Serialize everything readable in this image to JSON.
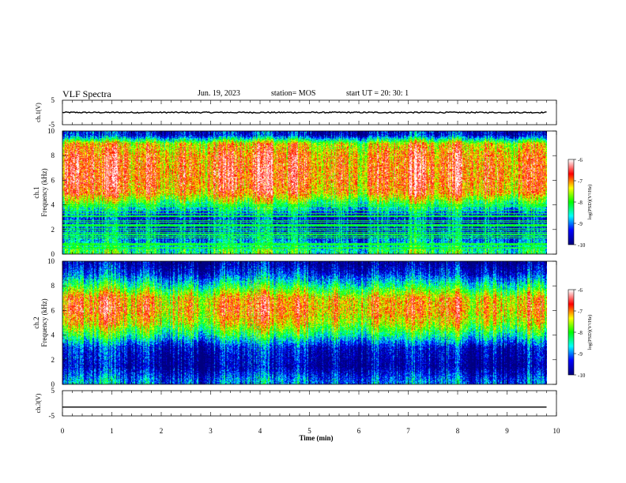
{
  "header": {
    "title": "VLF Spectra",
    "date": "Jun. 19, 2023",
    "station": "station= MOS",
    "start": "start  UT =   20: 30: 1"
  },
  "chart_data": [
    {
      "type": "line",
      "name": "ch1-waveform",
      "ylabel": "ch.1(V)",
      "ylim": [
        -5,
        5
      ],
      "xlim": [
        0,
        10
      ],
      "x": [
        0,
        9.8
      ],
      "values": [
        0,
        0
      ],
      "y_ticks": [
        5,
        -5
      ],
      "note_series": "near-constant trace around 0 V"
    },
    {
      "type": "heatmap",
      "name": "ch1-spectrogram",
      "ylabel": "ch.1\nFrequency (kHz)",
      "ylim": [
        0,
        10
      ],
      "xlim": [
        0,
        10
      ],
      "x_extent": [
        0,
        9.8
      ],
      "y_ticks": [
        0,
        2,
        4,
        6,
        8,
        10
      ],
      "colorbar": {
        "label": "log(PSD)(V²/Hz)",
        "range": [
          -10,
          -6
        ],
        "ticks": [
          -6,
          -7,
          -8,
          -9,
          -10
        ]
      },
      "intensity_profile": [
        {
          "freq_khz": 0.3,
          "log_psd": -8.2
        },
        {
          "freq_khz": 1.0,
          "log_psd": -8.8
        },
        {
          "freq_khz": 2.0,
          "log_psd": -9.2
        },
        {
          "freq_khz": 3.0,
          "log_psd": -9.4
        },
        {
          "freq_khz": 4.0,
          "log_psd": -8.2
        },
        {
          "freq_khz": 5.0,
          "log_psd": -7.0
        },
        {
          "freq_khz": 6.0,
          "log_psd": -6.8
        },
        {
          "freq_khz": 7.0,
          "log_psd": -6.8
        },
        {
          "freq_khz": 8.0,
          "log_psd": -6.9
        },
        {
          "freq_khz": 9.0,
          "log_psd": -7.3
        },
        {
          "freq_khz": 9.7,
          "log_psd": -9.5
        }
      ]
    },
    {
      "type": "heatmap",
      "name": "ch2-spectrogram",
      "ylabel": "ch.2\nFrequency (kHz)",
      "ylim": [
        0,
        10
      ],
      "xlim": [
        0,
        10
      ],
      "x_extent": [
        0,
        9.8
      ],
      "y_ticks": [
        0,
        2,
        4,
        6,
        8,
        10
      ],
      "colorbar": {
        "label": "log(PSD)(V²/Hz)",
        "range": [
          -10,
          -6
        ],
        "ticks": [
          -6,
          -7,
          -8,
          -9,
          -10
        ]
      },
      "intensity_profile": [
        {
          "freq_khz": 0.3,
          "log_psd": -9.0
        },
        {
          "freq_khz": 1.5,
          "log_psd": -9.8
        },
        {
          "freq_khz": 3.0,
          "log_psd": -9.5
        },
        {
          "freq_khz": 4.0,
          "log_psd": -8.3
        },
        {
          "freq_khz": 5.0,
          "log_psd": -7.4
        },
        {
          "freq_khz": 6.0,
          "log_psd": -7.0
        },
        {
          "freq_khz": 7.0,
          "log_psd": -7.1
        },
        {
          "freq_khz": 8.0,
          "log_psd": -8.2
        },
        {
          "freq_khz": 9.0,
          "log_psd": -9.3
        },
        {
          "freq_khz": 9.8,
          "log_psd": -9.8
        }
      ]
    },
    {
      "type": "line",
      "name": "ch3-waveform",
      "ylabel": "ch.3(V)",
      "ylim": [
        -5,
        5
      ],
      "xlim": [
        0,
        10
      ],
      "x": [
        0,
        9.8
      ],
      "values": [
        -1.5,
        -1.5
      ],
      "y_ticks": [
        5,
        -5
      ]
    }
  ],
  "x_axis": {
    "label": "Time  (min)",
    "ticks": [
      0,
      1,
      2,
      3,
      4,
      5,
      6,
      7,
      8,
      9,
      10
    ]
  },
  "colors": {
    "colormap": [
      "#000080",
      "#0000ff",
      "#00ffff",
      "#00ff00",
      "#ffff00",
      "#ff0000",
      "#ffffff"
    ]
  }
}
